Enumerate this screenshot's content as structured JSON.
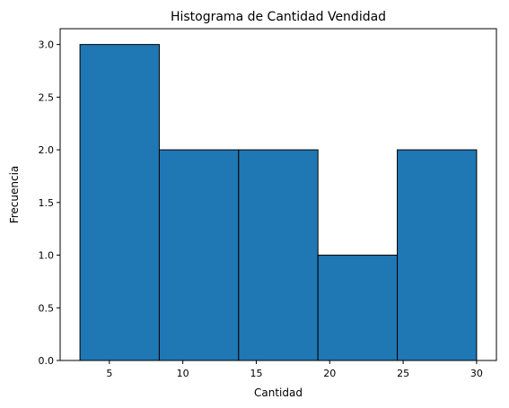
{
  "chart_data": {
    "type": "bar",
    "title": "Histograma de Cantidad Vendidad",
    "xlabel": "Cantidad",
    "ylabel": "Frecuencia",
    "bins": [
      {
        "start": 3.0,
        "end": 8.4,
        "count": 3
      },
      {
        "start": 8.4,
        "end": 13.8,
        "count": 2
      },
      {
        "start": 13.8,
        "end": 19.2,
        "count": 2
      },
      {
        "start": 19.2,
        "end": 24.6,
        "count": 1
      },
      {
        "start": 24.6,
        "end": 30.0,
        "count": 2
      }
    ],
    "xlim": [
      1.65,
      31.35
    ],
    "ylim": [
      0,
      3.15
    ],
    "xticks": [
      5,
      10,
      15,
      20,
      25,
      30
    ],
    "yticks": [
      0.0,
      0.5,
      1.0,
      1.5,
      2.0,
      2.5,
      3.0
    ],
    "bar_color": "#1f77b4",
    "edge_color": "#000000",
    "grid": false
  }
}
